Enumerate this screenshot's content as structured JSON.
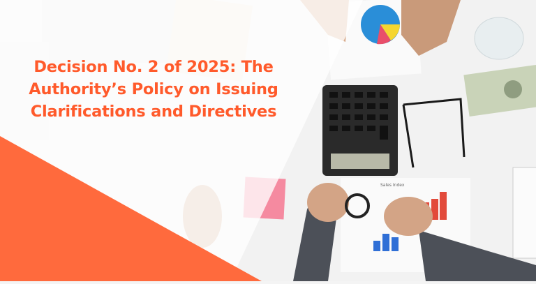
{
  "banner": {
    "title_lines": [
      "Decision No. 2 of 2025: The",
      "Authority’s Policy on Issuing",
      "Clarifications and Directives"
    ],
    "accent_color": "#ff6a3d",
    "title_color": "#ff5a2b"
  },
  "photo": {
    "chart_paper_heading": "Sales Index"
  }
}
